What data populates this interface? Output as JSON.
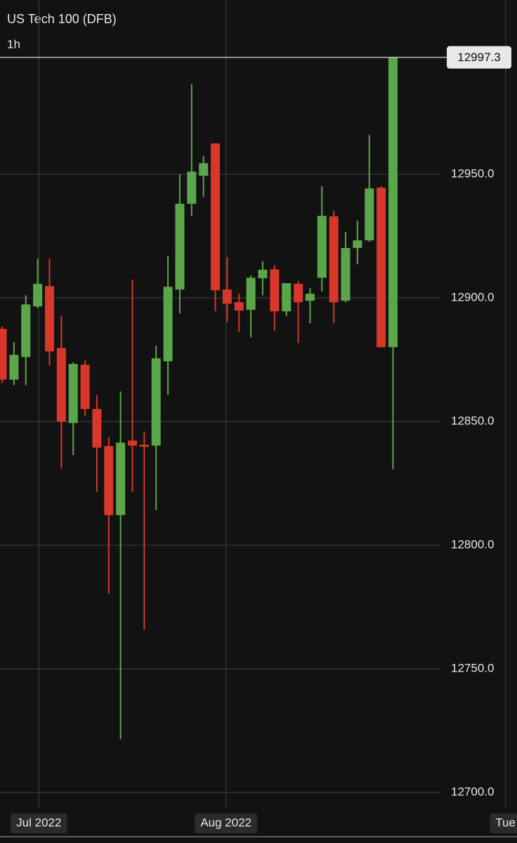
{
  "chart_data": {
    "type": "candlestick",
    "title": "US Tech 100 (DFB)",
    "interval": "1h",
    "up_color": "#5aa64a",
    "down_color": "#d8372a",
    "grid": true,
    "ylim": [
      12693.8,
      13020.5
    ],
    "yticks": [
      {
        "value": 12700,
        "label": "12700.0"
      },
      {
        "value": 12750,
        "label": "12750.0"
      },
      {
        "value": 12800,
        "label": "12800.0"
      },
      {
        "value": 12850,
        "label": "12850.0"
      },
      {
        "value": 12900,
        "label": "12900.0"
      },
      {
        "value": 12950,
        "label": "12950.0"
      }
    ],
    "xlim": [
      -0.18,
      43.47
    ],
    "xticks": [
      {
        "value": 3.1,
        "label": "Jul 2022"
      },
      {
        "value": 18.9,
        "label": "Aug 2022"
      },
      {
        "value": 42.5,
        "label": "Tue"
      }
    ],
    "last_price": 12997.3,
    "series": [
      {
        "open": [
          12887.5,
          12867.0,
          12876.1,
          12896.6,
          12904.8,
          12879.8,
          12849.4,
          12873.0,
          12855.1,
          12840.1,
          12812.2,
          12842.3,
          12840.6,
          12840.3,
          12874.4,
          12903.4,
          12938.1,
          12949.4,
          12962.5,
          12903.4,
          12898.3,
          12895.2,
          12908.0,
          12911.6,
          12894.6,
          12905.7,
          12898.9,
          12908.2,
          12933.0,
          12898.9,
          12920.2,
          12923.3,
          12944.6,
          12880.1
        ],
        "high": [
          12888.4,
          12882.1,
          12901.1,
          12915.9,
          12915.9,
          12892.6,
          12873.9,
          12874.7,
          12860.8,
          12843.8,
          12862.2,
          12907.4,
          12846.0,
          12880.7,
          12917.0,
          12950.0,
          12986.4,
          12957.4,
          12962.5,
          12916.5,
          12901.7,
          12909.1,
          12914.8,
          12913.1,
          12906.0,
          12906.8,
          12904.0,
          12945.2,
          12935.2,
          12926.7,
          12931.3,
          12965.9,
          12945.2,
          12997.3
        ],
        "low": [
          12865.6,
          12864.8,
          12864.8,
          12896.0,
          12872.7,
          12831.0,
          12836.4,
          12852.3,
          12821.6,
          12780.4,
          12721.6,
          12821.6,
          12765.9,
          12814.2,
          12860.8,
          12893.8,
          12933.2,
          12940.9,
          12894.6,
          12890.3,
          12886.4,
          12884.1,
          12901.1,
          12886.9,
          12892.6,
          12881.8,
          12889.8,
          12902.6,
          12889.8,
          12898.3,
          12913.6,
          12922.7,
          12880.1,
          12830.7
        ],
        "close": [
          12867.0,
          12877.0,
          12897.4,
          12905.7,
          12878.4,
          12850.0,
          12873.3,
          12855.1,
          12839.5,
          12812.2,
          12841.5,
          12840.3,
          12839.8,
          12875.6,
          12904.5,
          12938.1,
          12951.1,
          12954.5,
          12903.1,
          12897.7,
          12894.9,
          12908.2,
          12911.4,
          12894.6,
          12906.0,
          12898.3,
          12901.7,
          12933.2,
          12898.3,
          12920.2,
          12923.3,
          12944.3,
          12880.1,
          12997.3
        ]
      }
    ]
  }
}
